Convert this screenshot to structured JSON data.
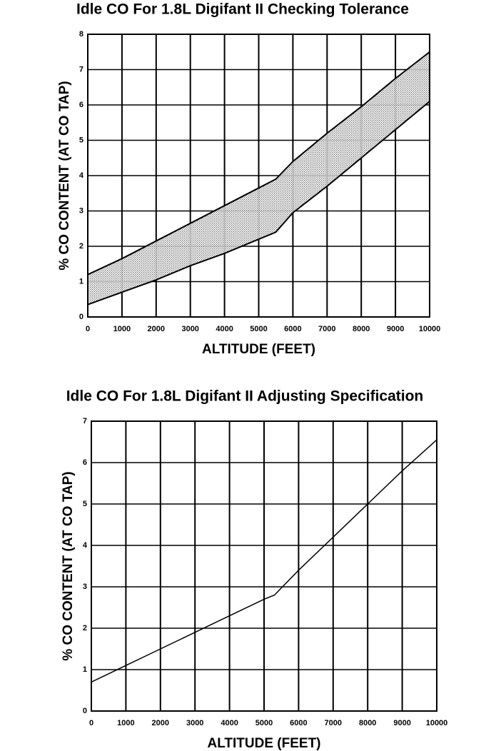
{
  "chart_data": [
    {
      "type": "band",
      "title": "Idle CO For 1.8L Digifant II Checking Tolerance",
      "x_label": "ALTITUDE (FEET)",
      "y_label": "% CO CONTENT (AT CO TAP)",
      "x": [
        0,
        1000,
        2000,
        3000,
        4000,
        5000,
        5500,
        6000,
        7000,
        8000,
        9000,
        10000
      ],
      "upper": [
        1.2,
        1.65,
        2.15,
        2.65,
        3.15,
        3.65,
        3.9,
        4.4,
        5.2,
        5.95,
        6.75,
        7.5
      ],
      "lower": [
        0.35,
        0.7,
        1.05,
        1.45,
        1.8,
        2.2,
        2.4,
        2.95,
        3.7,
        4.5,
        5.3,
        6.1
      ],
      "color": "#000000",
      "xlim": [
        0,
        10000
      ],
      "xticks": [
        0,
        1000,
        2000,
        3000,
        4000,
        5000,
        6000,
        7000,
        8000,
        9000,
        10000
      ],
      "ylim": [
        0,
        8
      ],
      "yticks": [
        0,
        1,
        2,
        3,
        4,
        5,
        6,
        7,
        8
      ],
      "grid": true
    },
    {
      "type": "line",
      "title": "Idle CO For 1.8L Digifant II Adjusting Specification",
      "x_label": "ALTITUDE (FEET)",
      "y_label": "% CO CONTENT (AT CO TAP)",
      "x": [
        0,
        1000,
        2000,
        3000,
        4000,
        5000,
        5300,
        6000,
        7000,
        8000,
        9000,
        10000
      ],
      "values": [
        0.7,
        1.1,
        1.5,
        1.9,
        2.3,
        2.7,
        2.8,
        3.4,
        4.2,
        5.0,
        5.8,
        6.55
      ],
      "color": "#000000",
      "xlim": [
        0,
        10000
      ],
      "xticks": [
        0,
        1000,
        2000,
        3000,
        4000,
        5000,
        6000,
        7000,
        8000,
        9000,
        10000
      ],
      "ylim": [
        0,
        7
      ],
      "yticks": [
        0,
        1,
        2,
        3,
        4,
        5,
        6,
        7
      ],
      "grid": true
    }
  ]
}
